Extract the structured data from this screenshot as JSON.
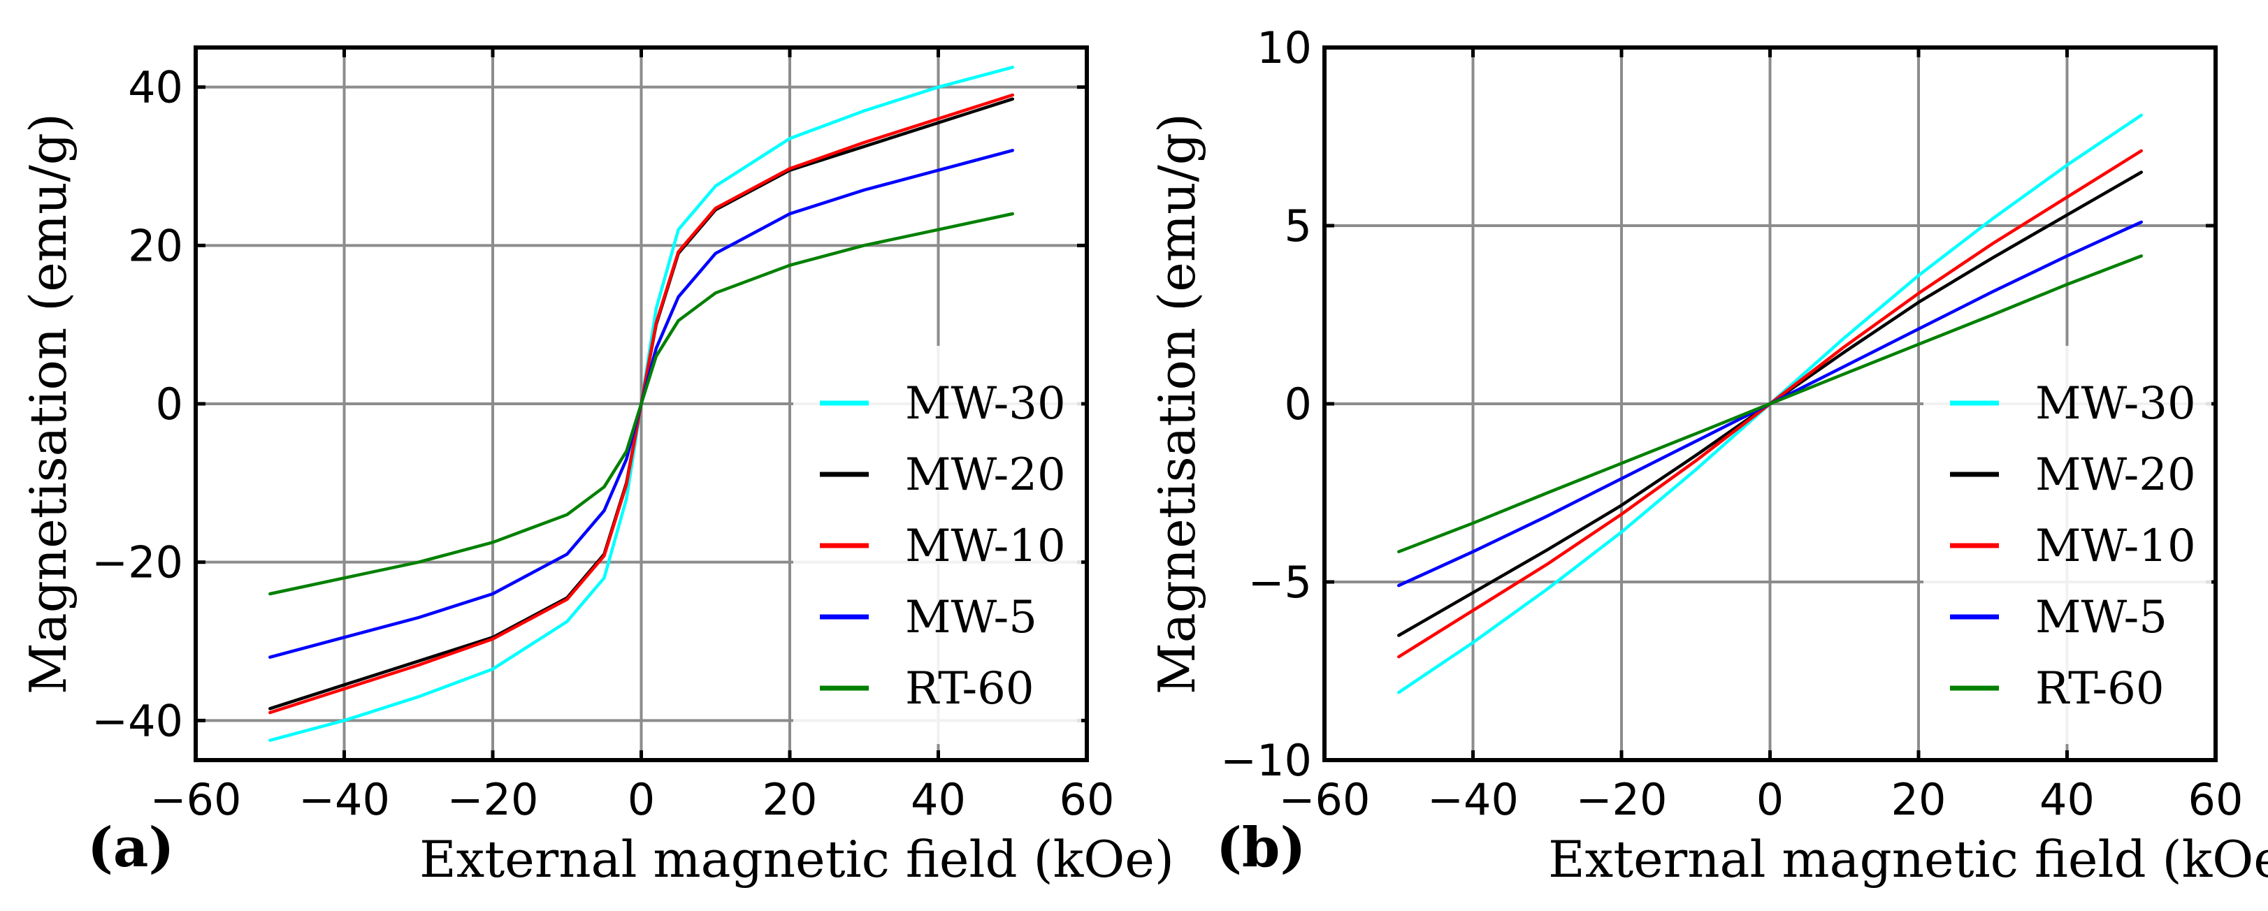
{
  "chart_data": [
    {
      "type": "line",
      "panel_label": "(a)",
      "xlabel": "External magnetic field (kOe)",
      "ylabel": "Magnetisation (emu/g)",
      "xlim": [
        -60,
        60
      ],
      "ylim": [
        -45,
        45
      ],
      "xticks": [
        -60,
        -40,
        -20,
        0,
        20,
        40,
        60
      ],
      "yticks": [
        -40,
        -20,
        0,
        20,
        40
      ],
      "grid": true,
      "legend_position": "lower-right",
      "x": [
        -50,
        -40,
        -30,
        -20,
        -10,
        -5,
        -2,
        0,
        2,
        5,
        10,
        20,
        30,
        40,
        50
      ],
      "series": [
        {
          "name": "MW-30",
          "color": "#00ffff",
          "values": [
            -42.5,
            -40.0,
            -37.0,
            -33.5,
            -27.5,
            -22.0,
            -12.0,
            0,
            12.0,
            22.0,
            27.5,
            33.5,
            37.0,
            40.0,
            42.5
          ]
        },
        {
          "name": "MW-20",
          "color": "#000000",
          "values": [
            -38.5,
            -35.5,
            -32.5,
            -29.5,
            -24.5,
            -19.0,
            -10.0,
            0,
            10.0,
            19.0,
            24.5,
            29.5,
            32.5,
            35.5,
            38.5
          ]
        },
        {
          "name": "MW-10",
          "color": "#ff0000",
          "values": [
            -39.0,
            -36.0,
            -33.0,
            -29.7,
            -24.7,
            -19.2,
            -10.2,
            0,
            10.2,
            19.2,
            24.7,
            29.7,
            33.0,
            36.0,
            39.0
          ]
        },
        {
          "name": "MW-5",
          "color": "#0000ff",
          "values": [
            -32.0,
            -29.5,
            -27.0,
            -24.0,
            -19.0,
            -13.5,
            -7.0,
            0,
            7.0,
            13.5,
            19.0,
            24.0,
            27.0,
            29.5,
            32.0
          ]
        },
        {
          "name": "RT-60",
          "color": "#008000",
          "values": [
            -24.0,
            -22.0,
            -20.0,
            -17.5,
            -14.0,
            -10.5,
            -6.0,
            0,
            6.0,
            10.5,
            14.0,
            17.5,
            20.0,
            22.0,
            24.0
          ]
        }
      ]
    },
    {
      "type": "line",
      "panel_label": "(b)",
      "xlabel": "External magnetic field (kOe)",
      "ylabel": "Magnetisation (emu/g)",
      "xlim": [
        -60,
        60
      ],
      "ylim": [
        -10,
        10
      ],
      "xticks": [
        -60,
        -40,
        -20,
        0,
        20,
        40,
        60
      ],
      "yticks": [
        -10,
        -5,
        0,
        5,
        10
      ],
      "grid": true,
      "legend_position": "lower-right",
      "x": [
        -50,
        -40,
        -30,
        -20,
        -10,
        0,
        10,
        20,
        30,
        40,
        50
      ],
      "series": [
        {
          "name": "MW-30",
          "color": "#00ffff",
          "values": [
            -8.1,
            -6.7,
            -5.2,
            -3.6,
            -1.85,
            0,
            1.85,
            3.6,
            5.2,
            6.7,
            8.1
          ]
        },
        {
          "name": "MW-20",
          "color": "#000000",
          "values": [
            -6.5,
            -5.3,
            -4.1,
            -2.85,
            -1.45,
            0,
            1.45,
            2.85,
            4.1,
            5.3,
            6.5
          ]
        },
        {
          "name": "MW-10",
          "color": "#ff0000",
          "values": [
            -7.1,
            -5.8,
            -4.5,
            -3.1,
            -1.6,
            0,
            1.6,
            3.1,
            4.5,
            5.8,
            7.1
          ]
        },
        {
          "name": "MW-5",
          "color": "#0000ff",
          "values": [
            -5.1,
            -4.15,
            -3.15,
            -2.1,
            -1.05,
            0,
            1.05,
            2.1,
            3.15,
            4.15,
            5.1
          ]
        },
        {
          "name": "RT-60",
          "color": "#008000",
          "values": [
            -4.15,
            -3.35,
            -2.5,
            -1.67,
            -0.84,
            0,
            0.84,
            1.67,
            2.5,
            3.35,
            4.15
          ]
        }
      ]
    }
  ]
}
